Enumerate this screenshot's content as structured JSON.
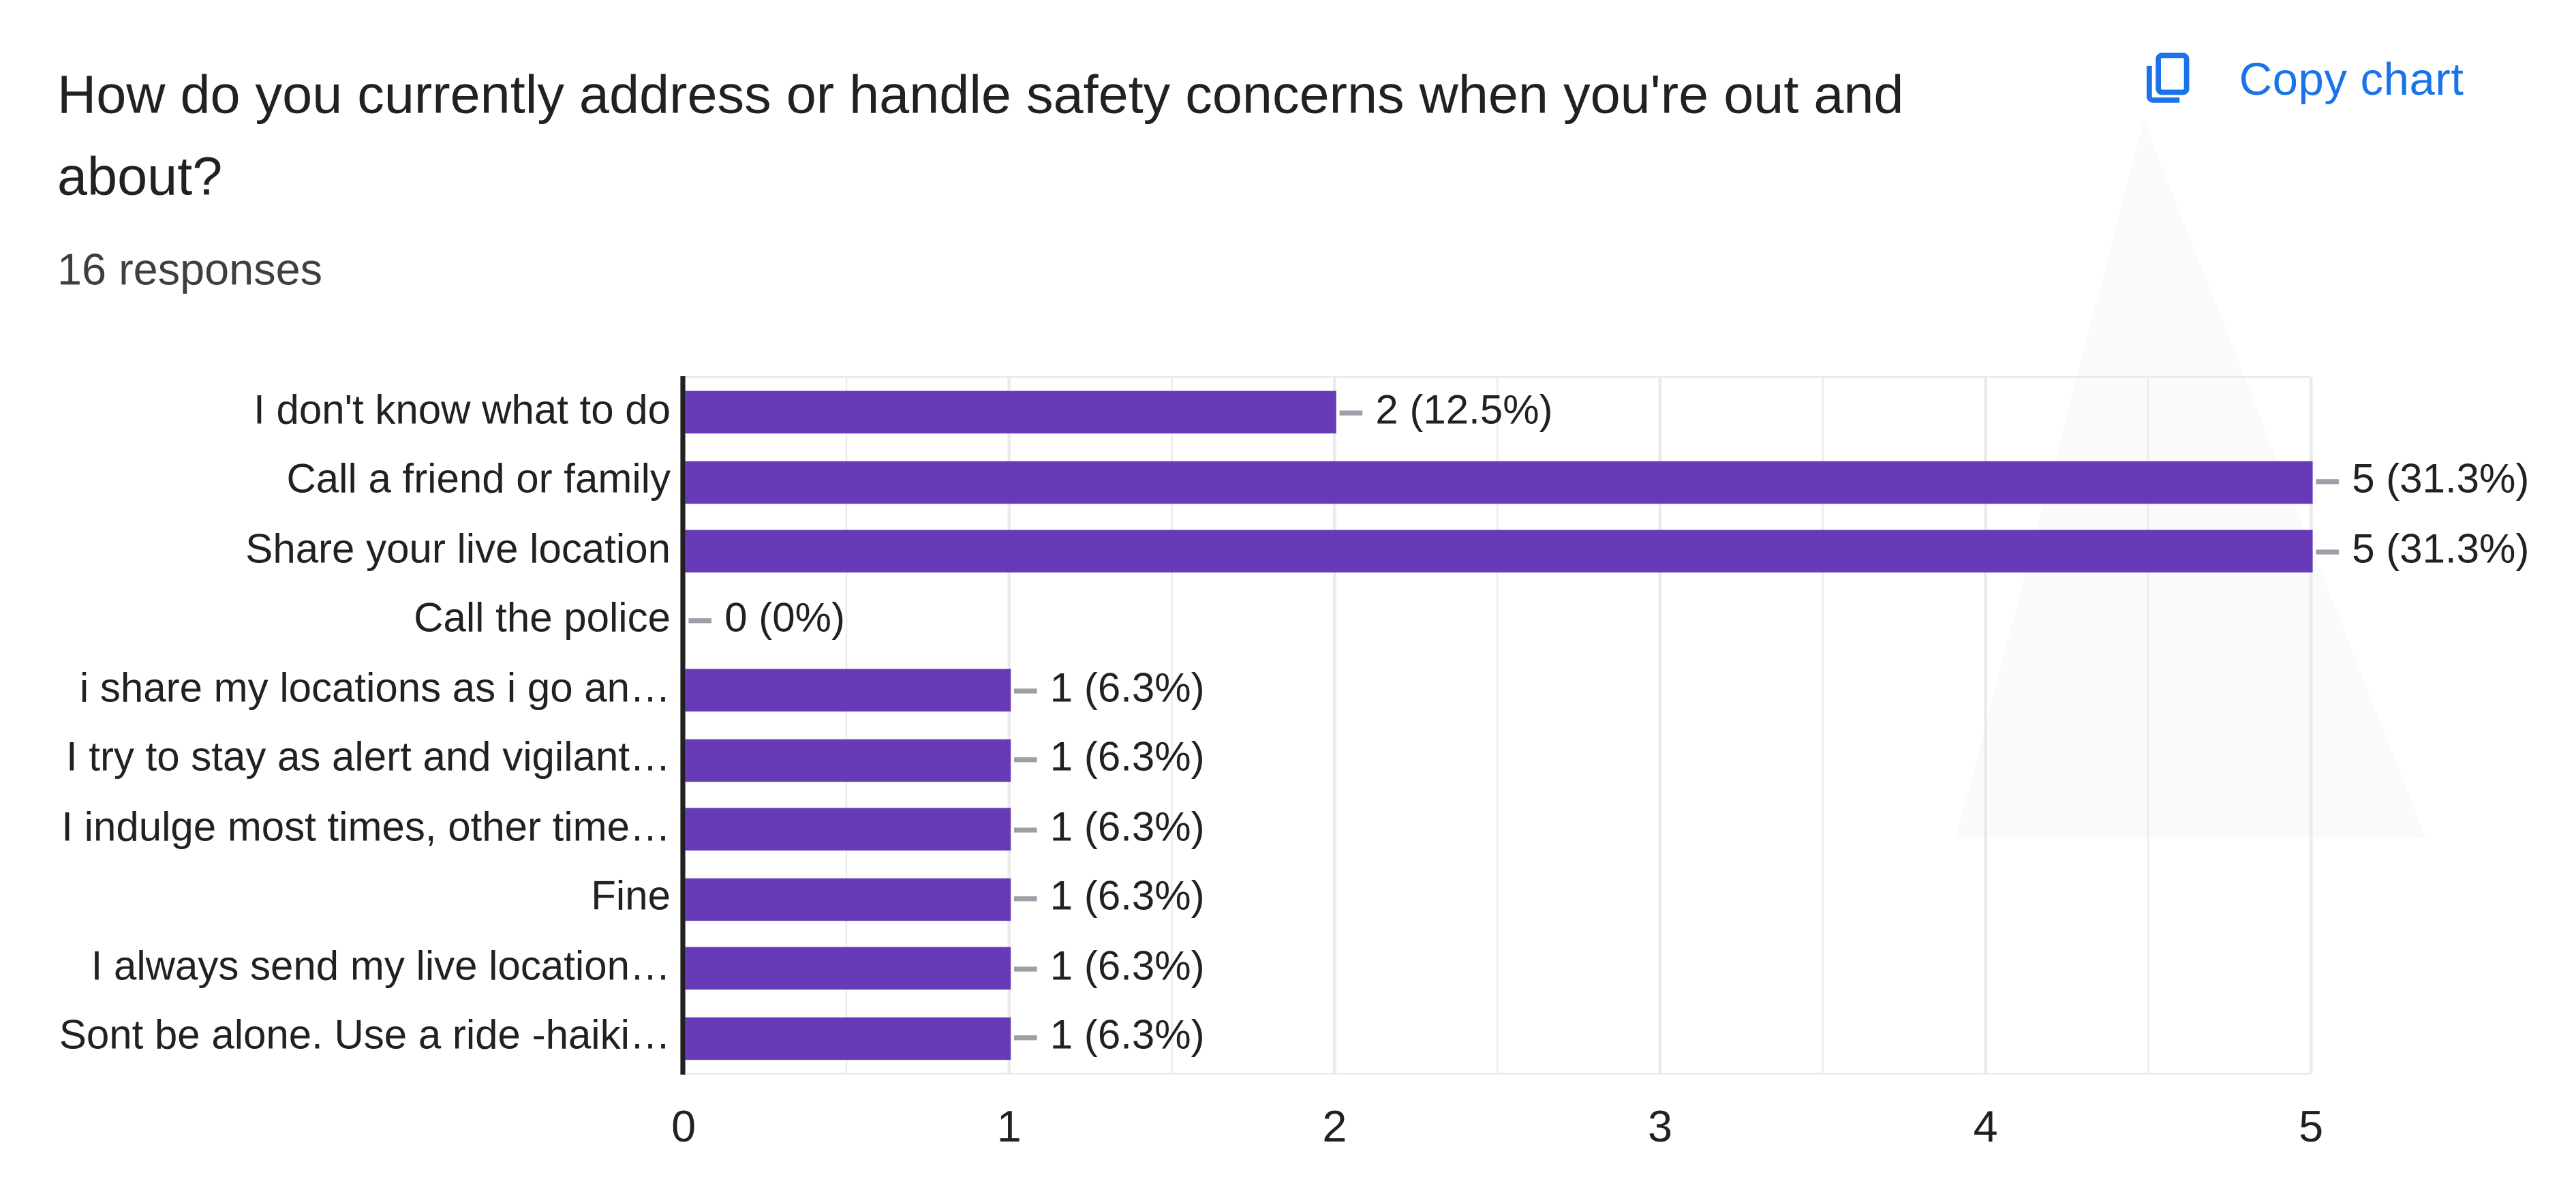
{
  "header": {
    "title_line1": "How do you currently address or handle safety concerns when you're out and",
    "title_line2": "about?",
    "response_count": "16 responses",
    "copy_chart_label": "Copy chart"
  },
  "colors": {
    "bar": "#673ab7",
    "accent_blue": "#1a73e8",
    "gridline": "#ebebeb",
    "axis_line": "#212121",
    "text_dark": "#202124",
    "dash_gray": "#9aa0a6"
  },
  "chart_data": {
    "type": "bar",
    "orientation": "horizontal",
    "title": "How do you currently address or handle safety concerns when you're out and about?",
    "subtitle": "16 responses",
    "categories": [
      "I don't know what to do",
      "Call a friend or family",
      "Share your live location",
      "Call the police",
      "i share my locations as i go an…",
      "I try to stay as alert and vigilant…",
      "I indulge most times, other time…",
      "Fine",
      "I always send my live location…",
      "Sont be alone. Use a ride -haiki…"
    ],
    "values": [
      2,
      5,
      5,
      0,
      1,
      1,
      1,
      1,
      1,
      1
    ],
    "value_labels": [
      "2 (12.5%)",
      "5 (31.3%)",
      "5 (31.3%)",
      "0 (0%)",
      "1 (6.3%)",
      "1 (6.3%)",
      "1 (6.3%)",
      "1 (6.3%)",
      "1 (6.3%)",
      "1 (6.3%)"
    ],
    "xlabel": "",
    "ylabel": "",
    "xlim": [
      0,
      5
    ],
    "x_ticks": [
      "0",
      "1",
      "2",
      "3",
      "4",
      "5"
    ],
    "gridline_step": 0.5,
    "grid": true,
    "legend_position": "none",
    "bar_color": "#673ab7"
  }
}
